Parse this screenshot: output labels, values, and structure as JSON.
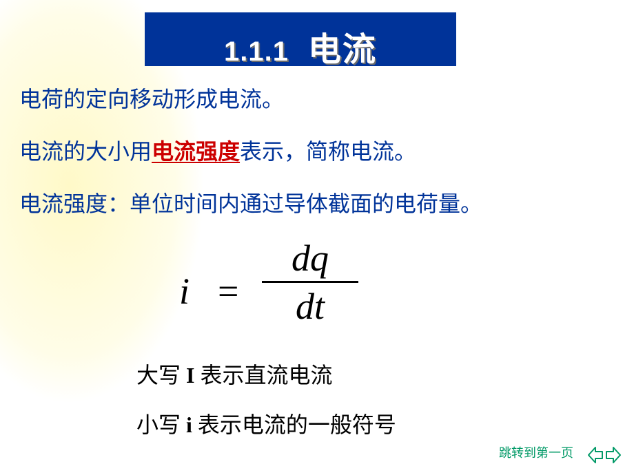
{
  "colors": {
    "banner_bg": "#003399",
    "title_text": "#ffffff",
    "title_shadow": "#6b6b6b",
    "body_text": "#003399",
    "emph_text": "#cc0000",
    "formula_text": "#000000",
    "note_text": "#000000",
    "footer_text": "#009966",
    "arrow": "#009966"
  },
  "fonts": {
    "title_num_size": 40,
    "title_txt_size": 48,
    "body_size": 32,
    "formula_size": 54,
    "note_size": 32,
    "footer_size": 18
  },
  "title": {
    "number": "1.1.1",
    "text": "电流"
  },
  "body": {
    "line1": "电荷的定向移动形成电流。",
    "line2_a": "电流的大小用",
    "line2_emph": "电流强度",
    "line2_b": "表示，简称电流。",
    "line3": "电流强度：单位时间内通过导体截面的电荷量。"
  },
  "formula": {
    "lhs": "i",
    "eq": "=",
    "num": "dq",
    "den": "dt"
  },
  "notes": {
    "n1_a": "大写 ",
    "n1_sym": "I",
    "n1_b": " 表示直流电流",
    "n2_a": "小写 ",
    "n2_sym": "i",
    "n2_b": " 表示电流的一般符号"
  },
  "footer": {
    "jump": "跳转到第一页"
  }
}
